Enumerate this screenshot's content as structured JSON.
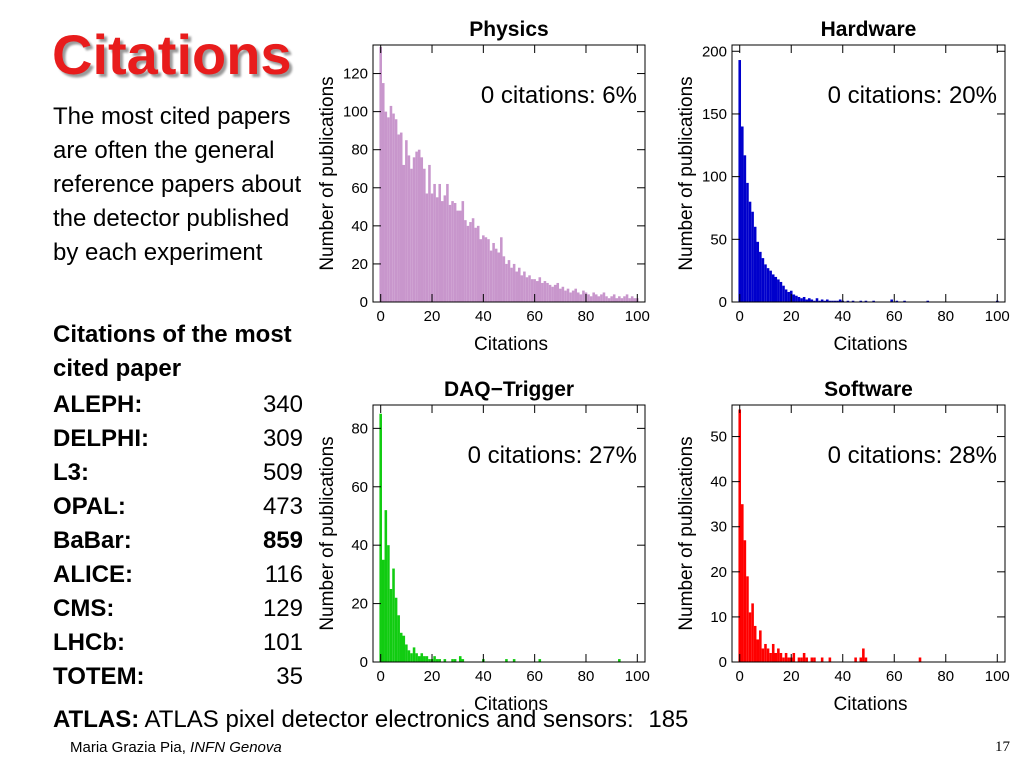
{
  "slide": {
    "title": "Citations",
    "intro": "The most cited papers are often the general reference papers about the detector published by each experiment",
    "cited_heading": "Citations of the most cited paper",
    "experiments": [
      {
        "name": "ALEPH:",
        "value": "340"
      },
      {
        "name": "DELPHI:",
        "value": "309"
      },
      {
        "name": "L3:",
        "value": "509"
      },
      {
        "name": "OPAL:",
        "value": "473"
      },
      {
        "name": "BaBar:",
        "value": "859"
      },
      {
        "name": "ALICE:",
        "value": "116"
      },
      {
        "name": "CMS:",
        "value": "129"
      },
      {
        "name": "LHCb:",
        "value": "101"
      },
      {
        "name": "TOTEM:",
        "value": "35"
      }
    ],
    "atlas_label": "ATLAS:",
    "atlas_text": "ATLAS pixel detector electronics and sensors:",
    "atlas_value": "185",
    "footer_author": "Maria Grazia Pia,",
    "footer_affil": "INFN Genova",
    "page_number": "17",
    "colors": {
      "title": "#e81c1c"
    }
  },
  "chart_data": [
    {
      "type": "bar",
      "title": "Physics",
      "annotation": "0 citations: 6%",
      "xlabel": "Citations",
      "ylabel": "Number of publications",
      "xlim": [
        -3,
        103
      ],
      "ylim": [
        0,
        135
      ],
      "xticks": [
        0,
        20,
        40,
        60,
        80,
        100
      ],
      "yticks": [
        0,
        20,
        40,
        60,
        80,
        100,
        120
      ],
      "color": "#c896cc",
      "values": [
        134,
        115,
        100,
        97,
        103,
        99,
        96,
        88,
        89,
        72,
        85,
        77,
        70,
        76,
        79,
        80,
        76,
        70,
        57,
        72,
        57,
        62,
        55,
        62,
        53,
        56,
        62,
        51,
        53,
        52,
        48,
        48,
        53,
        43,
        40,
        42,
        44,
        39,
        40,
        33,
        35,
        34,
        33,
        27,
        31,
        28,
        26,
        34,
        24,
        20,
        22,
        18,
        20,
        16,
        18,
        14,
        16,
        13,
        14,
        12,
        12,
        11,
        13,
        10,
        11,
        10,
        9,
        8,
        9,
        10,
        7,
        8,
        6,
        7,
        5,
        6,
        7,
        5,
        4,
        6,
        5,
        4,
        3,
        5,
        4,
        3,
        4,
        5,
        3,
        2,
        3,
        4,
        2,
        3,
        2,
        3,
        4,
        2,
        3,
        2,
        2
      ]
    },
    {
      "type": "bar",
      "title": "Hardware",
      "annotation": "0 citations: 20%",
      "xlabel": "Citations",
      "ylabel": "Number of publications",
      "xlim": [
        -3,
        103
      ],
      "ylim": [
        0,
        205
      ],
      "xticks": [
        0,
        20,
        40,
        60,
        80,
        100
      ],
      "yticks": [
        0,
        50,
        100,
        150,
        200
      ],
      "color": "#0000cc",
      "values": [
        193,
        140,
        117,
        95,
        80,
        72,
        60,
        48,
        40,
        35,
        30,
        27,
        25,
        22,
        20,
        18,
        16,
        13,
        10,
        8,
        9,
        6,
        5,
        4,
        3,
        4,
        2,
        3,
        2,
        1,
        3,
        1,
        2,
        1,
        2,
        1,
        1,
        1,
        1,
        2,
        1,
        0,
        1,
        0,
        1,
        0,
        0,
        1,
        0,
        1,
        0,
        0,
        1,
        0,
        0,
        0,
        0,
        0,
        0,
        2,
        0,
        1,
        0,
        0,
        1,
        0,
        0,
        0,
        0,
        0,
        0,
        0,
        0,
        1,
        0,
        0,
        0,
        0,
        0,
        0,
        0,
        0,
        0,
        0,
        0,
        0,
        0,
        0,
        0,
        0,
        0,
        0,
        0,
        0,
        0,
        0,
        0,
        0,
        0,
        0,
        1
      ]
    },
    {
      "type": "bar",
      "title": "DAQ−Trigger",
      "annotation": "0 citations: 27%",
      "xlabel": "Citations",
      "ylabel": "Number of publications",
      "xlim": [
        -3,
        103
      ],
      "ylim": [
        0,
        88
      ],
      "xticks": [
        0,
        20,
        40,
        60,
        80,
        100
      ],
      "yticks": [
        0,
        20,
        40,
        60,
        80
      ],
      "color": "#11cc11",
      "values": [
        85,
        35,
        52,
        40,
        25,
        32,
        22,
        16,
        10,
        9,
        6,
        4,
        3,
        5,
        3,
        2,
        3,
        2,
        2,
        1,
        1,
        2,
        1,
        1,
        0,
        1,
        0,
        0,
        1,
        1,
        0,
        2,
        1,
        0,
        0,
        0,
        0,
        0,
        0,
        0,
        1,
        0,
        0,
        0,
        0,
        0,
        0,
        0,
        0,
        1,
        0,
        0,
        1,
        0,
        0,
        0,
        0,
        0,
        0,
        0,
        0,
        0,
        1,
        0,
        0,
        0,
        0,
        0,
        0,
        0,
        0,
        0,
        0,
        0,
        0,
        0,
        0,
        0,
        0,
        0,
        0,
        0,
        0,
        0,
        0,
        0,
        0,
        0,
        0,
        0,
        0,
        0,
        0,
        1,
        0,
        0,
        0,
        0,
        0,
        0,
        0
      ]
    },
    {
      "type": "bar",
      "title": "Software",
      "annotation": "0 citations: 28%",
      "xlabel": "Citations",
      "ylabel": "Number of publications",
      "xlim": [
        -3,
        103
      ],
      "ylim": [
        0,
        57
      ],
      "xticks": [
        0,
        20,
        40,
        60,
        80,
        100
      ],
      "yticks": [
        0,
        10,
        20,
        30,
        40,
        50
      ],
      "color": "#ff0000",
      "values": [
        56,
        35,
        27,
        19,
        11,
        13,
        8,
        5,
        7,
        3,
        4,
        3,
        2,
        4,
        2,
        3,
        2,
        1,
        2,
        1,
        1,
        2,
        0,
        1,
        1,
        2,
        1,
        0,
        1,
        1,
        0,
        0,
        1,
        0,
        0,
        1,
        0,
        0,
        0,
        0,
        0,
        0,
        0,
        0,
        0,
        1,
        0,
        1,
        3,
        1,
        0,
        0,
        0,
        0,
        0,
        0,
        0,
        0,
        0,
        0,
        0,
        0,
        0,
        0,
        0,
        0,
        0,
        0,
        0,
        0,
        1,
        0,
        0,
        0,
        0,
        0,
        0,
        0,
        0,
        0,
        0,
        0,
        0,
        0,
        0,
        0,
        0,
        0,
        0,
        0,
        0,
        0,
        0,
        0,
        0,
        0,
        0,
        0,
        0,
        0,
        0
      ]
    }
  ]
}
